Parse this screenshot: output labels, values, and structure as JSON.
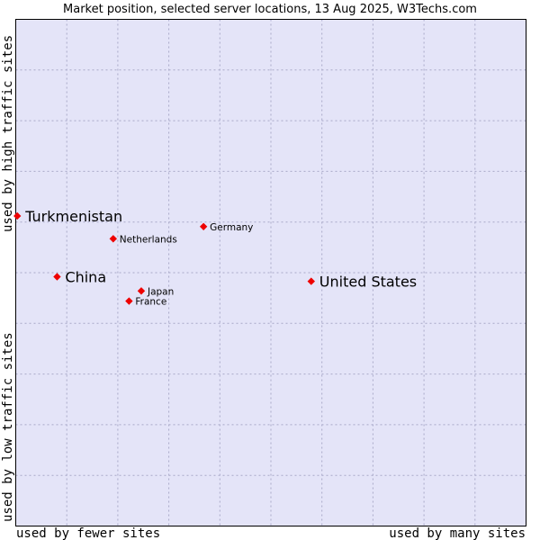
{
  "chart_data": {
    "type": "scatter",
    "title": "Market position, selected server locations, 13 Aug 2025, W3Techs.com",
    "xlabel_low": "used by fewer sites",
    "xlabel_high": "used by many sites",
    "ylabel_low": "used by low traffic sites",
    "ylabel_high": "used by high traffic sites",
    "xlim": [
      0,
      100
    ],
    "ylim": [
      0,
      100
    ],
    "grid": true,
    "colors": {
      "plot_bg": "#e4e4f8",
      "grid": "#a8a8c8",
      "border": "#000000",
      "point": "#ee0000"
    },
    "points": [
      {
        "name": "Turkmenistan",
        "x": 0.3,
        "y": 61.2,
        "emphasis": "large"
      },
      {
        "name": "Germany",
        "x": 36.8,
        "y": 59.1,
        "emphasis": "small"
      },
      {
        "name": "Netherlands",
        "x": 19.1,
        "y": 56.7,
        "emphasis": "small"
      },
      {
        "name": "China",
        "x": 8.1,
        "y": 49.2,
        "emphasis": "large"
      },
      {
        "name": "United States",
        "x": 57.9,
        "y": 48.3,
        "emphasis": "large"
      },
      {
        "name": "Japan",
        "x": 24.6,
        "y": 46.4,
        "emphasis": "small"
      },
      {
        "name": "France",
        "x": 22.2,
        "y": 44.4,
        "emphasis": "small"
      }
    ]
  }
}
